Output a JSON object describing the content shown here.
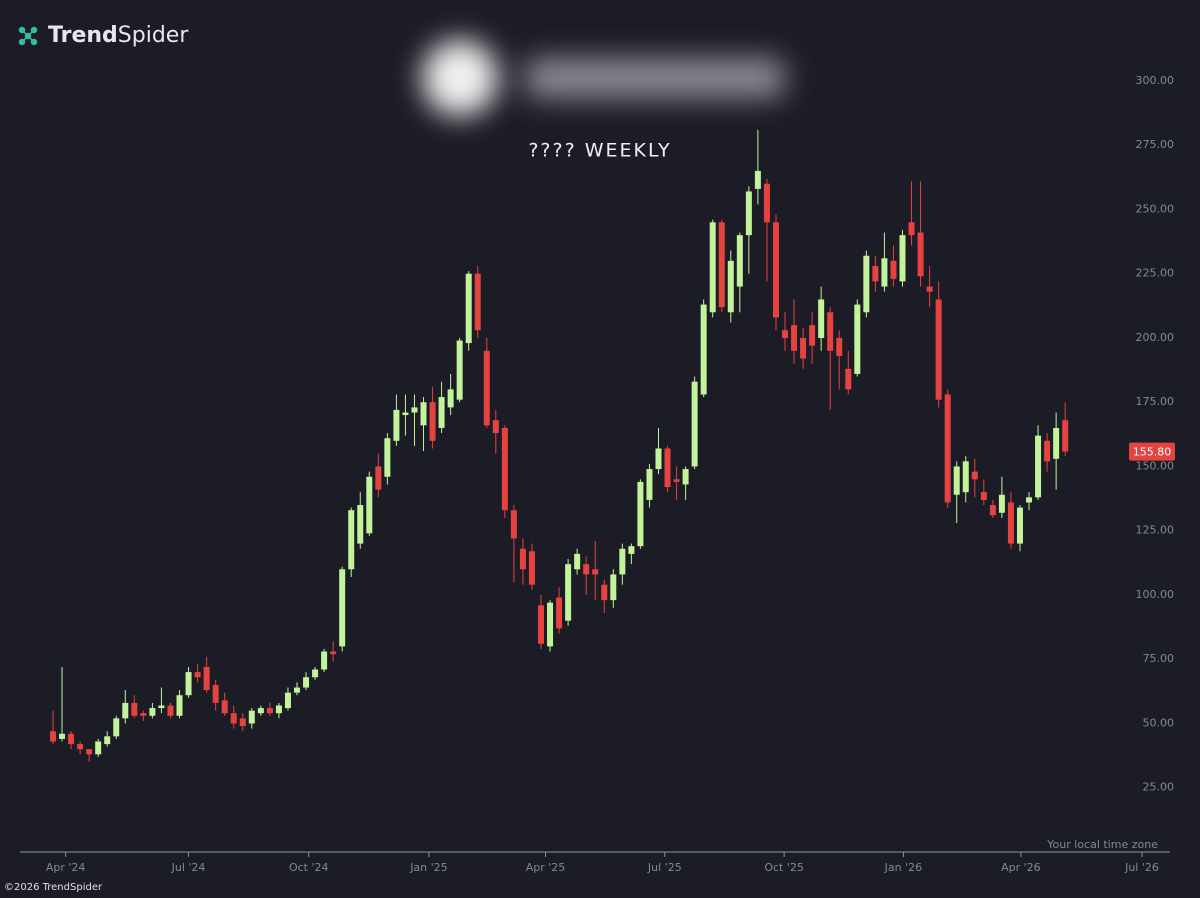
{
  "brand": {
    "strong": "Trend",
    "light": "Spider"
  },
  "footer": "©2026 TrendSpider",
  "timezone_note": "Your local time zone",
  "chart_data": {
    "type": "candlestick",
    "title": "???? WEEKLY",
    "open": [
      47,
      44,
      46,
      42,
      40,
      38,
      42,
      45,
      52,
      58,
      54,
      53,
      56,
      57,
      53,
      61,
      70,
      72,
      65,
      59,
      54,
      52,
      50,
      54,
      56,
      54,
      56,
      62,
      64,
      68,
      71,
      78,
      80,
      110,
      120,
      124,
      150,
      146,
      160,
      170,
      171,
      166,
      175,
      165,
      173,
      176,
      198,
      225,
      195,
      168,
      165,
      133,
      118,
      117,
      96,
      80,
      99,
      90,
      110,
      112,
      110,
      104,
      98,
      108,
      116,
      119,
      137,
      149,
      157,
      145,
      143,
      150,
      178,
      210,
      245,
      210,
      220,
      240,
      258,
      260,
      245,
      203,
      205,
      200,
      205,
      200,
      210,
      200,
      188,
      186,
      210,
      228,
      220,
      230,
      222,
      245,
      241,
      220,
      215,
      178,
      139,
      140,
      148,
      140,
      135,
      132,
      136,
      120,
      136,
      138,
      160,
      153,
      168
    ],
    "high": [
      55,
      72,
      47,
      43,
      40,
      44,
      47,
      53,
      63,
      61,
      55,
      58,
      64,
      58,
      63,
      72,
      73,
      76,
      67,
      62,
      57,
      54,
      56,
      57,
      58,
      58,
      64,
      66,
      70,
      72,
      79,
      82,
      111,
      134,
      140,
      148,
      155,
      163,
      178,
      178,
      178,
      177,
      181,
      183,
      186,
      200,
      226,
      228,
      200,
      172,
      166,
      135,
      122,
      120,
      100,
      98,
      103,
      114,
      118,
      115,
      121,
      106,
      110,
      120,
      120,
      145,
      151,
      165,
      158,
      150,
      150,
      185,
      215,
      246,
      246,
      234,
      241,
      259,
      281,
      262,
      248,
      210,
      215,
      204,
      210,
      220,
      212,
      203,
      195,
      215,
      234,
      232,
      241,
      236,
      242,
      261,
      261,
      228,
      222,
      180,
      152,
      154,
      153,
      145,
      137,
      146,
      140,
      135,
      140,
      166,
      163,
      171,
      175
    ],
    "low": [
      42,
      43,
      40,
      38,
      35,
      37,
      41,
      44,
      50,
      52,
      51,
      52,
      54,
      52,
      52,
      60,
      66,
      62,
      55,
      53,
      48,
      47,
      48,
      53,
      53,
      52,
      55,
      61,
      63,
      67,
      70,
      74,
      78,
      107,
      118,
      123,
      138,
      143,
      158,
      162,
      158,
      156,
      157,
      163,
      170,
      175,
      195,
      200,
      165,
      155,
      130,
      105,
      104,
      102,
      79,
      78,
      85,
      88,
      108,
      100,
      98,
      93,
      95,
      104,
      112,
      118,
      134,
      147,
      140,
      137,
      137,
      149,
      177,
      208,
      210,
      206,
      210,
      225,
      252,
      222,
      203,
      195,
      190,
      188,
      190,
      195,
      172,
      180,
      178,
      185,
      208,
      218,
      218,
      220,
      220,
      236,
      220,
      212,
      173,
      134,
      128,
      136,
      138,
      135,
      130,
      130,
      118,
      117,
      133,
      137,
      148,
      141,
      154
    ],
    "close": [
      43,
      46,
      42,
      40,
      38,
      43,
      45,
      52,
      58,
      53,
      53,
      56,
      57,
      53,
      61,
      70,
      68,
      63,
      58,
      54,
      50,
      49,
      55,
      56,
      54,
      57,
      62,
      64,
      68,
      71,
      78,
      77,
      110,
      133,
      135,
      146,
      141,
      161,
      172,
      171,
      173,
      175,
      160,
      177,
      180,
      199,
      225,
      203,
      166,
      163,
      133,
      122,
      110,
      104,
      81,
      97,
      87,
      112,
      116,
      108,
      108,
      98,
      108,
      118,
      119,
      144,
      149,
      157,
      142,
      144,
      149,
      183,
      213,
      245,
      212,
      230,
      240,
      257,
      265,
      245,
      208,
      200,
      195,
      192,
      197,
      215,
      195,
      193,
      180,
      213,
      232,
      222,
      231,
      223,
      240,
      240,
      224,
      218,
      176,
      136,
      150,
      152,
      145,
      137,
      131,
      139,
      120,
      134,
      138,
      162,
      152,
      165,
      155.8
    ],
    "up_color": "#c3f39a",
    "down_color": "#e5433f",
    "last_price": {
      "value": 155.8,
      "label": "155.80"
    },
    "xlim": [
      -3.65,
      123.6
    ],
    "xticks": [
      {
        "value": 1.4,
        "label": "Apr '24"
      },
      {
        "value": 15.0,
        "label": "Jul '24"
      },
      {
        "value": 28.3,
        "label": "Oct '24"
      },
      {
        "value": 41.6,
        "label": "Jan '25"
      },
      {
        "value": 54.5,
        "label": "Apr '25"
      },
      {
        "value": 67.7,
        "label": "Jul '25"
      },
      {
        "value": 80.9,
        "label": "Oct '25"
      },
      {
        "value": 94.1,
        "label": "Jan '26"
      },
      {
        "value": 107.1,
        "label": "Apr '26"
      },
      {
        "value": 120.5,
        "label": "Jul '26"
      }
    ],
    "ylim": [
      0,
      331.5
    ],
    "yticks": [
      {
        "value": 25,
        "label": "25.00"
      },
      {
        "value": 50,
        "label": "50.00"
      },
      {
        "value": 75,
        "label": "75.00"
      },
      {
        "value": 100,
        "label": "100.00"
      },
      {
        "value": 125,
        "label": "125.00"
      },
      {
        "value": 150,
        "label": "150.00"
      },
      {
        "value": 175,
        "label": "175.00"
      },
      {
        "value": 200,
        "label": "200.00"
      },
      {
        "value": 225,
        "label": "225.00"
      },
      {
        "value": 250,
        "label": "250.00"
      },
      {
        "value": 275,
        "label": "275.00"
      },
      {
        "value": 300,
        "label": "300.00"
      }
    ]
  }
}
